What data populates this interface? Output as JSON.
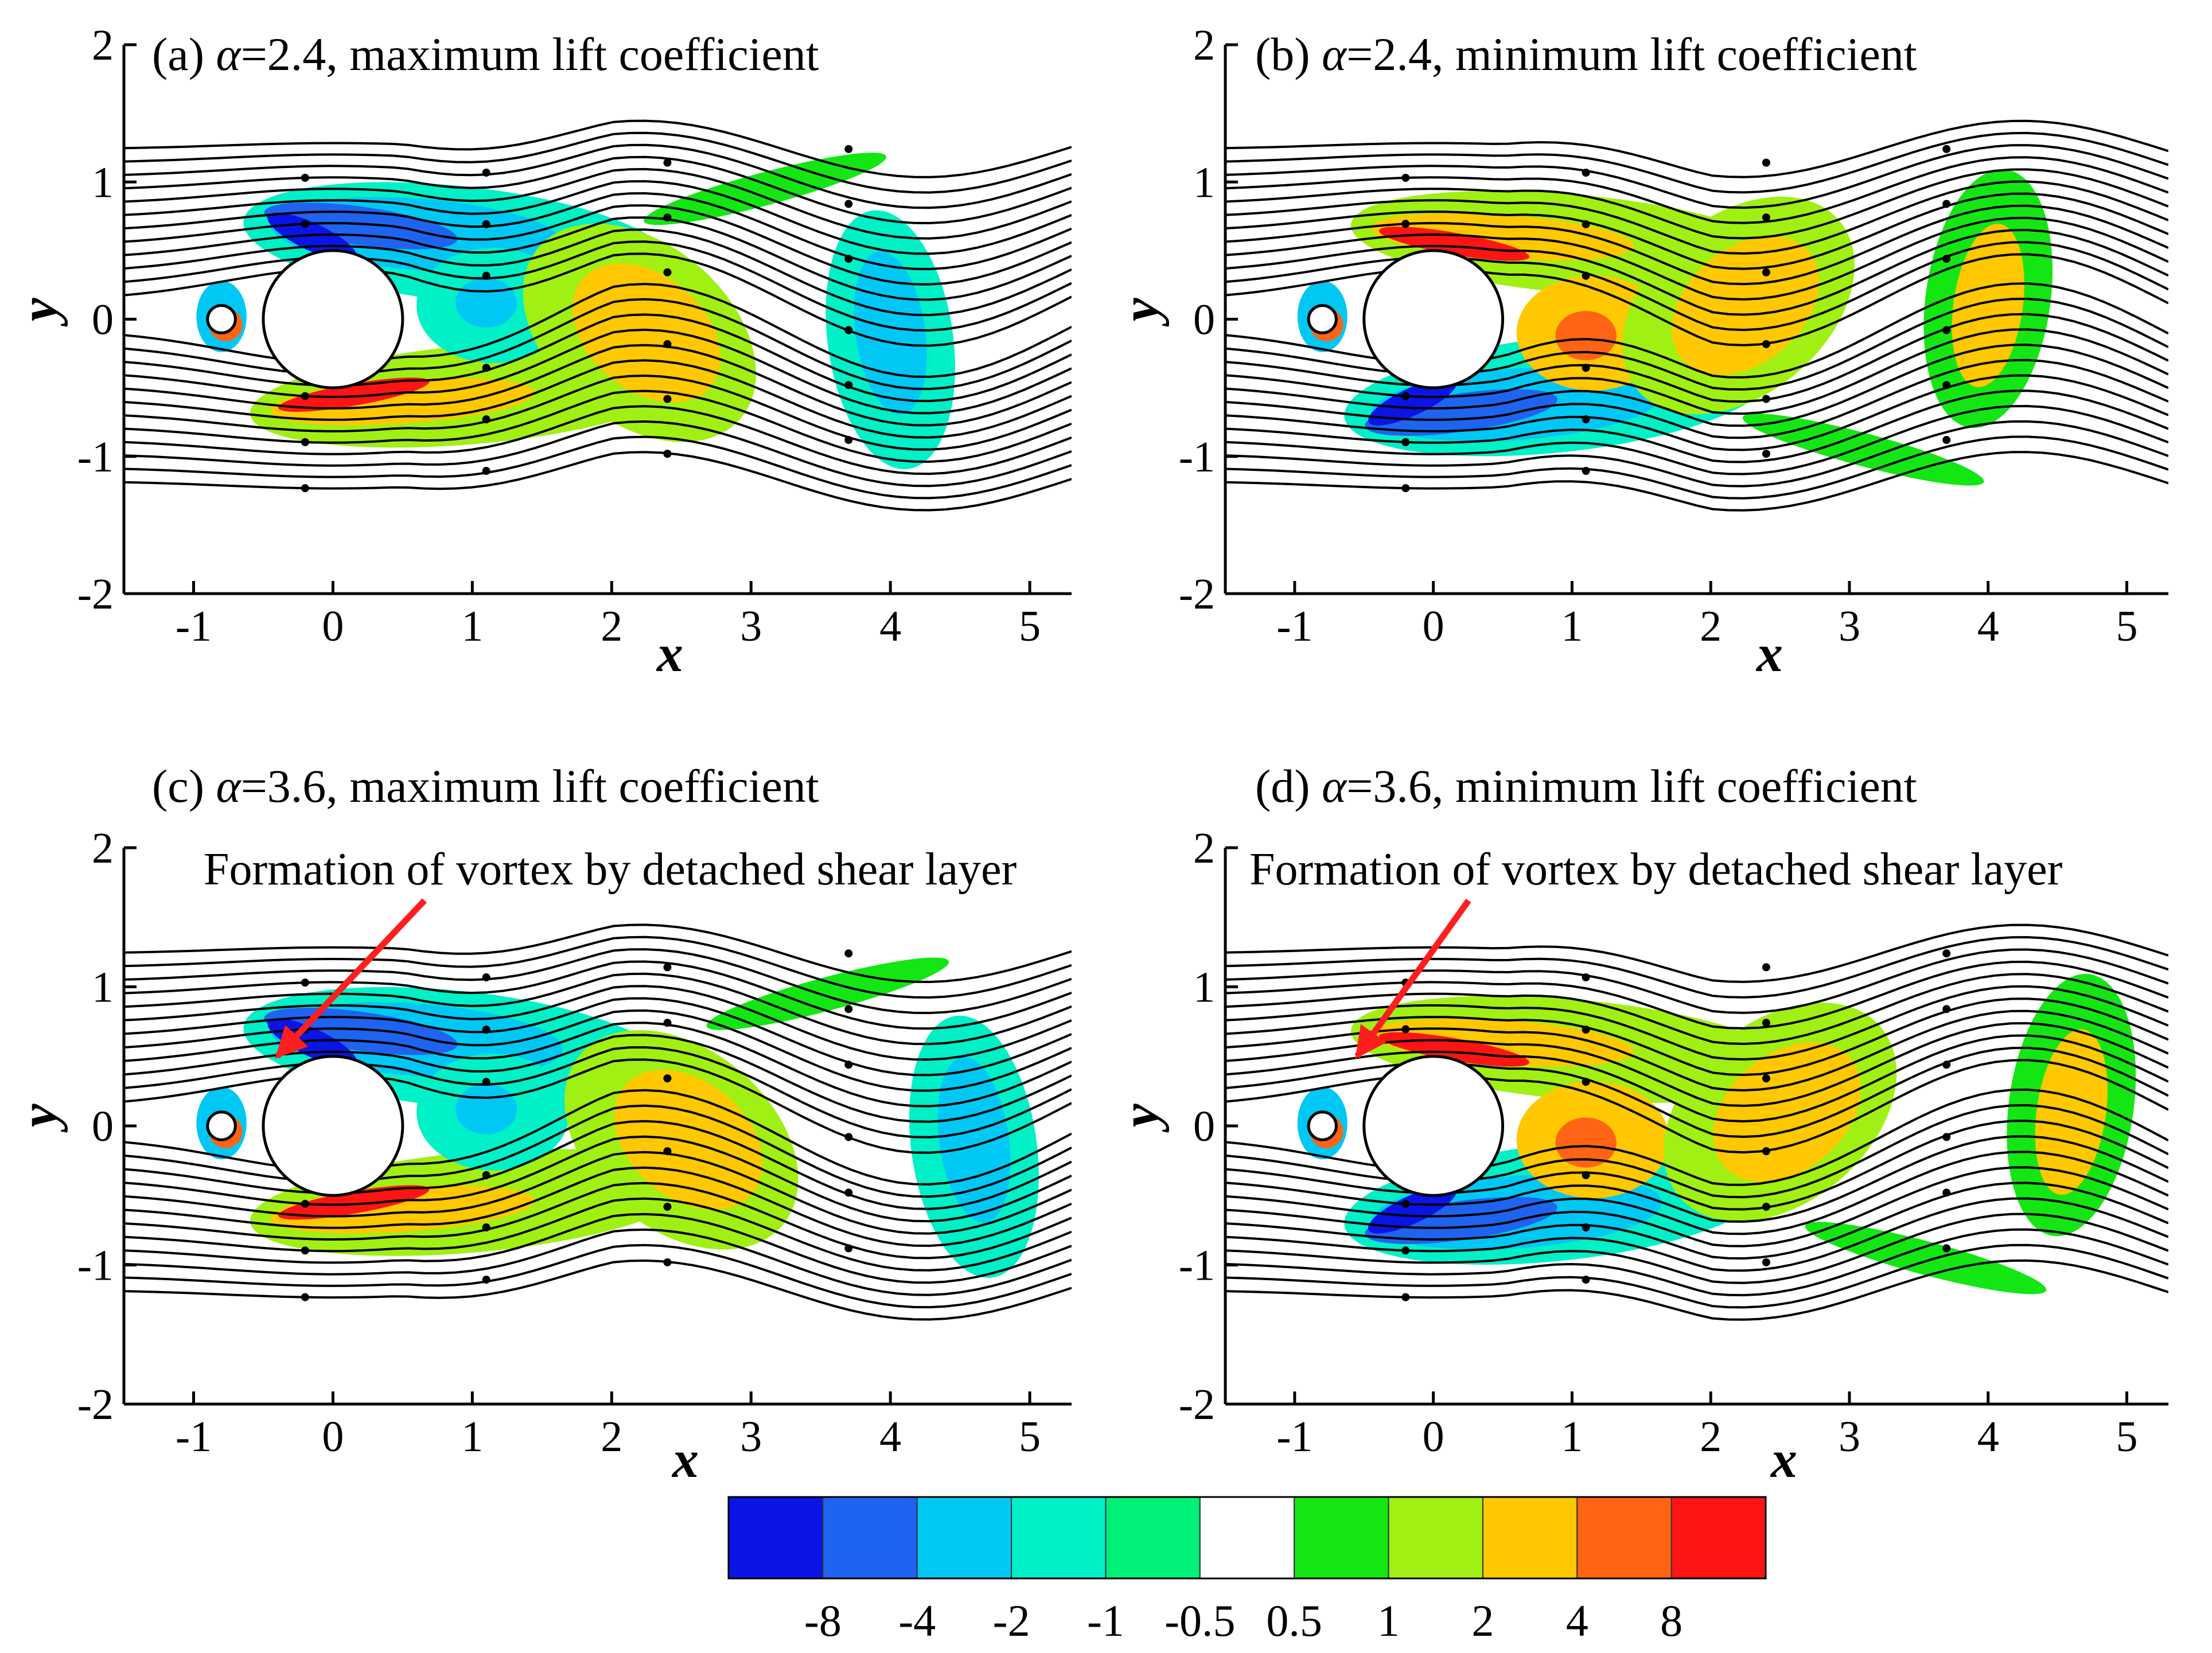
{
  "figure": {
    "description_free": true
  },
  "colorbar": {
    "levels": [
      "-8",
      "-4",
      "-2",
      "-1",
      "-0.5",
      "0.5",
      "1",
      "2",
      "4",
      "8"
    ],
    "colors": [
      "#0a14e6",
      "#1e64f0",
      "#00c8f5",
      "#00f0c8",
      "#00f078",
      "#ffffff",
      "#14e614",
      "#a0f014",
      "#ffc800",
      "#ff6414",
      "#ff1414"
    ]
  },
  "chart_data": [
    {
      "type": "contour",
      "panel": "a",
      "title_prefix": "(a) ",
      "title_symbol": "α",
      "title_rest": "=2.4, maximum lift coefficient",
      "xlabel": "x",
      "ylabel": "y",
      "xlim": [
        -1.5,
        5.3
      ],
      "ylim": [
        -2,
        2
      ],
      "xticks": [
        -1,
        0,
        1,
        2,
        3,
        4,
        5
      ],
      "yticks": [
        -2,
        -1,
        0,
        1,
        2
      ],
      "cylinders": [
        {
          "cx": 0,
          "cy": 0,
          "r": 0.5
        },
        {
          "cx": -0.8,
          "cy": 0,
          "r": 0.1
        }
      ],
      "wake_phase": 0,
      "annotation": null
    },
    {
      "type": "contour",
      "panel": "b",
      "title_prefix": "(b) ",
      "title_symbol": "α",
      "title_rest": "=2.4, minimum lift coefficient",
      "xlabel": "x",
      "ylabel": "y",
      "xlim": [
        -1.5,
        5.3
      ],
      "ylim": [
        -2,
        2
      ],
      "xticks": [
        -1,
        0,
        1,
        2,
        3,
        4,
        5
      ],
      "yticks": [
        -2,
        -1,
        0,
        1,
        2
      ],
      "cylinders": [
        {
          "cx": 0,
          "cy": 0,
          "r": 0.5
        },
        {
          "cx": -0.8,
          "cy": 0,
          "r": 0.1
        }
      ],
      "wake_phase": 1,
      "annotation": null
    },
    {
      "type": "contour",
      "panel": "c",
      "title_prefix": "(c) ",
      "title_symbol": "α",
      "title_rest": "=3.6, maximum lift coefficient",
      "xlabel": "x",
      "ylabel": "y",
      "xlim": [
        -1.5,
        5.3
      ],
      "ylim": [
        -2,
        2
      ],
      "xticks": [
        -1,
        0,
        1,
        2,
        3,
        4,
        5
      ],
      "yticks": [
        -2,
        -1,
        0,
        1,
        2
      ],
      "cylinders": [
        {
          "cx": 0,
          "cy": 0,
          "r": 0.5
        },
        {
          "cx": -0.8,
          "cy": 0,
          "r": 0.1
        }
      ],
      "wake_phase": 0,
      "annotation": {
        "text": "Formation of vortex by detached shear layer",
        "target": [
          -0.4,
          0.5
        ]
      }
    },
    {
      "type": "contour",
      "panel": "d",
      "title_prefix": "(d) ",
      "title_symbol": "α",
      "title_rest": "=3.6, minimum lift coefficient",
      "xlabel": "x",
      "ylabel": "y",
      "xlim": [
        -1.5,
        5.3
      ],
      "ylim": [
        -2,
        2
      ],
      "xticks": [
        -1,
        0,
        1,
        2,
        3,
        4,
        5
      ],
      "yticks": [
        -2,
        -1,
        0,
        1,
        2
      ],
      "cylinders": [
        {
          "cx": 0,
          "cy": 0,
          "r": 0.5
        },
        {
          "cx": -0.8,
          "cy": 0,
          "r": 0.1
        }
      ],
      "wake_phase": 1,
      "annotation": {
        "text": "Formation of vortex by detached shear layer",
        "target": [
          -0.55,
          0.5
        ]
      }
    }
  ]
}
